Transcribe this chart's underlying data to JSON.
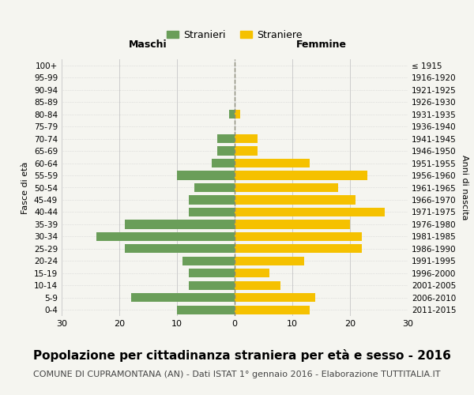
{
  "age_groups": [
    "0-4",
    "5-9",
    "10-14",
    "15-19",
    "20-24",
    "25-29",
    "30-34",
    "35-39",
    "40-44",
    "45-49",
    "50-54",
    "55-59",
    "60-64",
    "65-69",
    "70-74",
    "75-79",
    "80-84",
    "85-89",
    "90-94",
    "95-99",
    "100+"
  ],
  "birth_years": [
    "2011-2015",
    "2006-2010",
    "2001-2005",
    "1996-2000",
    "1991-1995",
    "1986-1990",
    "1981-1985",
    "1976-1980",
    "1971-1975",
    "1966-1970",
    "1961-1965",
    "1956-1960",
    "1951-1955",
    "1946-1950",
    "1941-1945",
    "1936-1940",
    "1931-1935",
    "1926-1930",
    "1921-1925",
    "1916-1920",
    "≤ 1915"
  ],
  "maschi": [
    10,
    18,
    8,
    8,
    9,
    19,
    24,
    19,
    8,
    8,
    7,
    10,
    4,
    3,
    3,
    0,
    1,
    0,
    0,
    0,
    0
  ],
  "femmine": [
    13,
    14,
    8,
    6,
    12,
    22,
    22,
    20,
    26,
    21,
    18,
    23,
    13,
    4,
    4,
    0,
    1,
    0,
    0,
    0,
    0
  ],
  "male_color": "#6a9e59",
  "female_color": "#f5c100",
  "background_color": "#f5f5f0",
  "grid_color": "#cccccc",
  "center_line_color": "#888877",
  "title": "Popolazione per cittadinanza straniera per età e sesso - 2016",
  "subtitle": "COMUNE DI CUPRAMONTANA (AN) - Dati ISTAT 1° gennaio 2016 - Elaborazione TUTTITALIA.IT",
  "xlabel_left": "Maschi",
  "xlabel_right": "Femmine",
  "ylabel_left": "Fasce di età",
  "ylabel_right": "Anni di nascita",
  "legend_male": "Stranieri",
  "legend_female": "Straniere",
  "xlim": 30,
  "title_fontsize": 11,
  "subtitle_fontsize": 8,
  "bar_height": 0.72
}
